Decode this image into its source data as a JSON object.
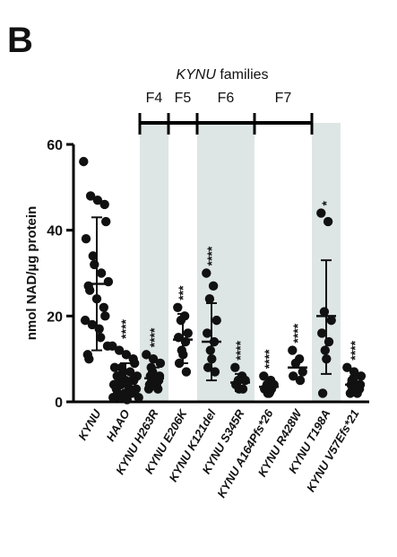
{
  "panel_label": "B",
  "chart_data": {
    "type": "scatter",
    "title": "",
    "header": {
      "gene": "KYNU",
      "suffix": " families"
    },
    "ylabel": "nmol NAD/µg protein",
    "xlabel": "",
    "ylim": [
      0,
      60
    ],
    "yticks": [
      0,
      20,
      40,
      60
    ],
    "grid": false,
    "legend": "none",
    "categories": [
      "KYNU",
      "HAAO",
      "KYNU H263R",
      "KYNU E206K",
      "KYNU K121del",
      "KYNU S345R",
      "KYNU A164Pfs*26",
      "KYNU R428W",
      "KYNU T198A",
      "KYNU V57Efs*21"
    ],
    "families": [
      {
        "label": "F4",
        "from": 2,
        "to": 2,
        "shaded": true
      },
      {
        "label": "F5",
        "from": 3,
        "to": 3,
        "shaded": false
      },
      {
        "label": "F6",
        "from": 4,
        "to": 5,
        "shaded": true
      },
      {
        "label": "F7",
        "from": 6,
        "to": 7,
        "shaded": false
      }
    ],
    "extra_shaded": [
      8
    ],
    "groups": [
      {
        "category": "KYNU",
        "mean": 27.5,
        "sd_low": 12,
        "sd_high": 43,
        "significance": "",
        "points": [
          56,
          48,
          47,
          46,
          42,
          38,
          34,
          32,
          30,
          28,
          27,
          26,
          24,
          22,
          20,
          19,
          18,
          17,
          15,
          13,
          11,
          10
        ]
      },
      {
        "category": "HAAO",
        "mean": 5,
        "sd_low": 1.5,
        "sd_high": 9,
        "significance": "****",
        "points": [
          13,
          12,
          11,
          10,
          9,
          8,
          8,
          7,
          7,
          6,
          6,
          6,
          5,
          5,
          5,
          4,
          4,
          4,
          3,
          3,
          3,
          2,
          2,
          2,
          1,
          1,
          1,
          0.5
        ]
      },
      {
        "category": "KYNU H263R",
        "mean": 5.5,
        "sd_low": 3,
        "sd_high": 8,
        "significance": "****",
        "points": [
          11,
          10,
          9,
          8,
          7,
          6,
          6,
          5,
          5,
          4,
          4,
          3,
          3
        ]
      },
      {
        "category": "KYNU E206K",
        "mean": 14.5,
        "sd_low": 9,
        "sd_high": 20.5,
        "significance": "***",
        "points": [
          22,
          20,
          19,
          16,
          15,
          14,
          12,
          11,
          9,
          7
        ]
      },
      {
        "category": "KYNU K121del",
        "mean": 14,
        "sd_low": 5,
        "sd_high": 23,
        "significance": "****",
        "points": [
          30,
          27,
          24,
          19,
          16,
          14,
          12,
          10,
          8,
          7
        ]
      },
      {
        "category": "KYNU S345R",
        "mean": 4.5,
        "sd_low": 2.5,
        "sd_high": 6.5,
        "significance": "****",
        "points": [
          8,
          6,
          5,
          5,
          4,
          3,
          3
        ]
      },
      {
        "category": "KYNU A164Pfs*26",
        "mean": 3.5,
        "sd_low": 2,
        "sd_high": 5.5,
        "significance": "****",
        "points": [
          6,
          5,
          4,
          4,
          3,
          3,
          2,
          2
        ]
      },
      {
        "category": "KYNU R428W",
        "mean": 8,
        "sd_low": 8,
        "sd_high": 8,
        "significance": "****",
        "points": [
          12,
          10,
          9,
          7,
          6,
          5
        ]
      },
      {
        "category": "KYNU T198A",
        "mean": 20,
        "sd_low": 6.5,
        "sd_high": 33,
        "significance": "*",
        "points": [
          44,
          42,
          21,
          19,
          16,
          14,
          12,
          10,
          2
        ]
      },
      {
        "category": "KYNU V57Efs*21",
        "mean": 4,
        "sd_low": 2.5,
        "sd_high": 6,
        "significance": "****",
        "points": [
          8,
          7,
          6,
          5,
          5,
          4,
          4,
          3,
          3,
          2,
          2
        ]
      }
    ]
  }
}
